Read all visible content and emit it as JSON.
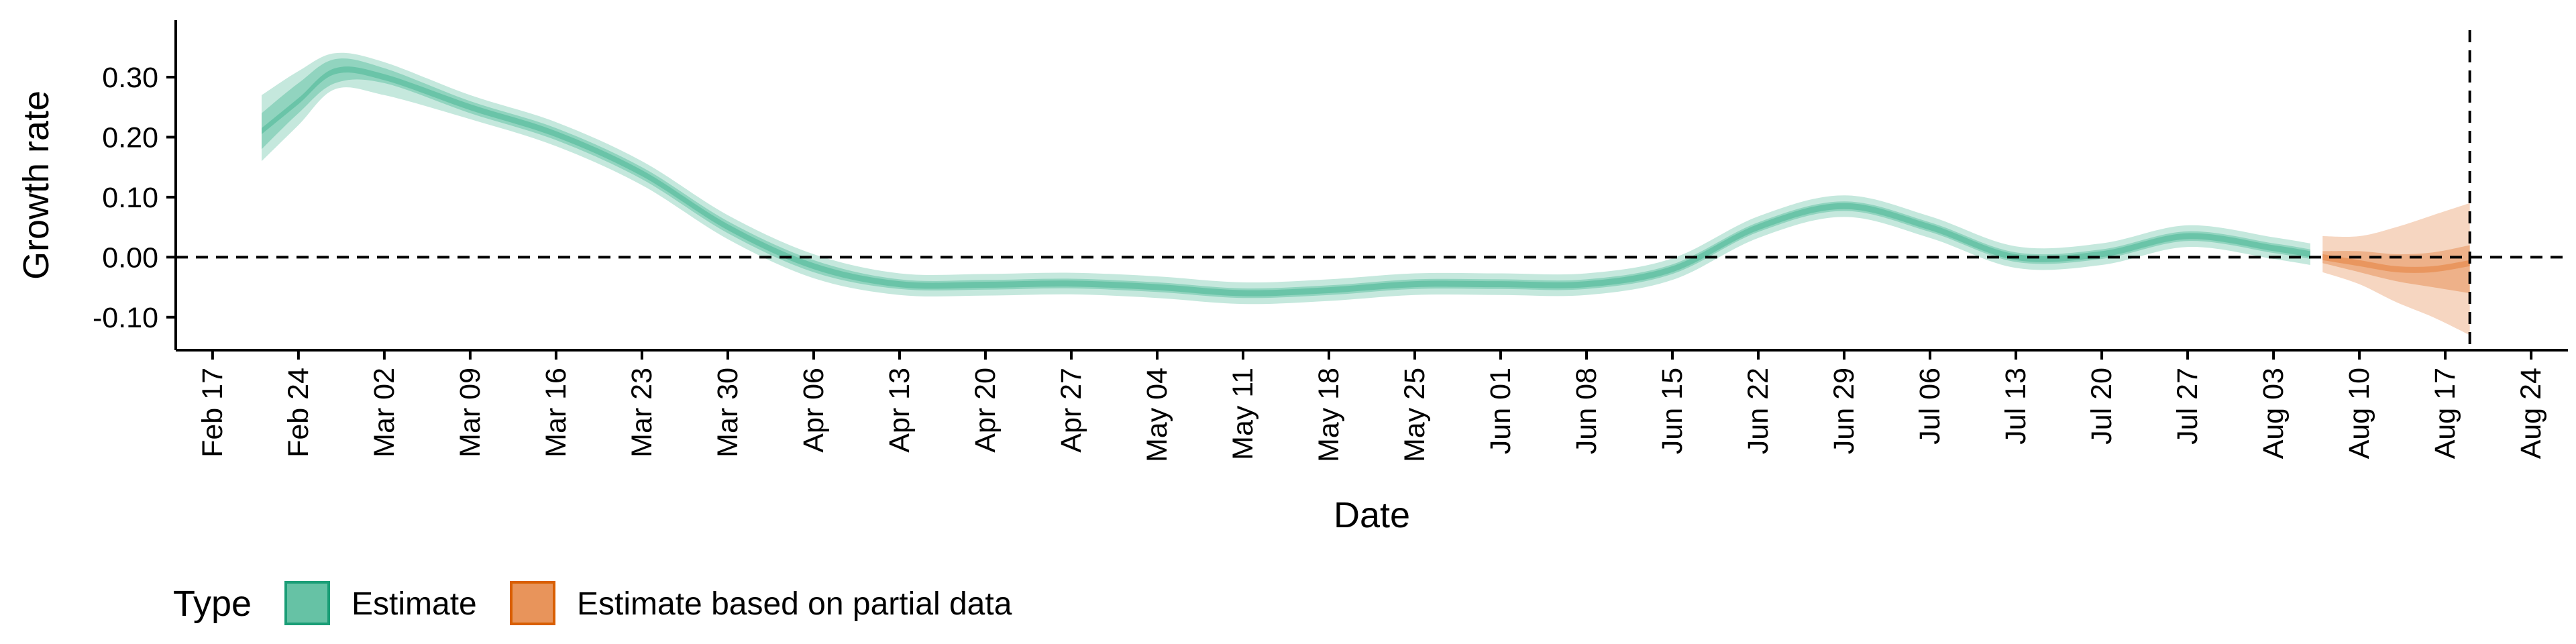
{
  "chart_data": {
    "type": "area",
    "xlabel": "Date",
    "ylabel": "Growth rate",
    "x_ticks": [
      "Feb 17",
      "Feb 24",
      "Mar 02",
      "Mar 09",
      "Mar 16",
      "Mar 23",
      "Mar 30",
      "Apr 06",
      "Apr 13",
      "Apr 20",
      "Apr 27",
      "May 04",
      "May 11",
      "May 18",
      "May 25",
      "Jun 01",
      "Jun 08",
      "Jun 15",
      "Jun 22",
      "Jun 29",
      "Jul 06",
      "Jul 13",
      "Jul 20",
      "Jul 27",
      "Aug 03",
      "Aug 10",
      "Aug 17",
      "Aug 24"
    ],
    "y_ticks": [
      -0.1,
      0.0,
      0.1,
      0.2,
      0.3
    ],
    "y_tick_labels": [
      "-0.10",
      "0.00",
      "0.10",
      "0.20",
      "0.30"
    ],
    "ylim": [
      -0.155,
      0.395
    ],
    "xlim": [
      "2020-02-14",
      "2020-08-27"
    ],
    "hline": 0.0,
    "vline": "2020-08-19",
    "grid": false,
    "legend": {
      "title": "Type",
      "position": "bottom-left",
      "entries": [
        {
          "label": "Estimate",
          "color": "#66c2a5",
          "edge": "#1b9e77"
        },
        {
          "label": "Estimate based on partial data",
          "color": "#e8945b",
          "edge": "#d95f02"
        }
      ]
    },
    "series": [
      {
        "name": "Estimate",
        "color": "#66c2a5",
        "points": [
          {
            "x": "2020-02-21",
            "median": 0.21,
            "lo50": 0.18,
            "hi50": 0.24,
            "lo90": 0.16,
            "hi90": 0.27
          },
          {
            "x": "2020-02-24",
            "median": 0.26,
            "lo50": 0.24,
            "hi50": 0.29,
            "lo90": 0.22,
            "hi90": 0.31
          },
          {
            "x": "2020-02-27",
            "median": 0.31,
            "lo50": 0.29,
            "hi50": 0.33,
            "lo90": 0.28,
            "hi90": 0.34
          },
          {
            "x": "2020-03-02",
            "median": 0.3,
            "lo50": 0.29,
            "hi50": 0.315,
            "lo90": 0.27,
            "hi90": 0.325
          },
          {
            "x": "2020-03-09",
            "median": 0.25,
            "lo50": 0.24,
            "hi50": 0.26,
            "lo90": 0.23,
            "hi90": 0.27
          },
          {
            "x": "2020-03-16",
            "median": 0.205,
            "lo50": 0.195,
            "hi50": 0.215,
            "lo90": 0.185,
            "hi90": 0.225
          },
          {
            "x": "2020-03-23",
            "median": 0.14,
            "lo50": 0.13,
            "hi50": 0.15,
            "lo90": 0.12,
            "hi90": 0.16
          },
          {
            "x": "2020-03-30",
            "median": 0.05,
            "lo50": 0.04,
            "hi50": 0.06,
            "lo90": 0.03,
            "hi90": 0.07
          },
          {
            "x": "2020-04-06",
            "median": -0.015,
            "lo50": -0.025,
            "hi50": -0.005,
            "lo90": -0.035,
            "hi90": 0.005
          },
          {
            "x": "2020-04-13",
            "median": -0.045,
            "lo50": -0.053,
            "hi50": -0.037,
            "lo90": -0.063,
            "hi90": -0.027
          },
          {
            "x": "2020-04-20",
            "median": -0.046,
            "lo50": -0.054,
            "hi50": -0.038,
            "lo90": -0.064,
            "hi90": -0.028
          },
          {
            "x": "2020-04-27",
            "median": -0.044,
            "lo50": -0.052,
            "hi50": -0.036,
            "lo90": -0.062,
            "hi90": -0.026
          },
          {
            "x": "2020-05-04",
            "median": -0.05,
            "lo50": -0.058,
            "hi50": -0.042,
            "lo90": -0.068,
            "hi90": -0.032
          },
          {
            "x": "2020-05-11",
            "median": -0.06,
            "lo50": -0.068,
            "hi50": -0.052,
            "lo90": -0.078,
            "hi90": -0.042
          },
          {
            "x": "2020-05-18",
            "median": -0.055,
            "lo50": -0.063,
            "hi50": -0.047,
            "lo90": -0.073,
            "hi90": -0.037
          },
          {
            "x": "2020-05-25",
            "median": -0.045,
            "lo50": -0.053,
            "hi50": -0.037,
            "lo90": -0.063,
            "hi90": -0.027
          },
          {
            "x": "2020-06-01",
            "median": -0.045,
            "lo50": -0.053,
            "hi50": -0.037,
            "lo90": -0.063,
            "hi90": -0.027
          },
          {
            "x": "2020-06-08",
            "median": -0.045,
            "lo50": -0.053,
            "hi50": -0.037,
            "lo90": -0.063,
            "hi90": -0.027
          },
          {
            "x": "2020-06-15",
            "median": -0.02,
            "lo50": -0.028,
            "hi50": -0.012,
            "lo90": -0.038,
            "hi90": -0.002
          },
          {
            "x": "2020-06-22",
            "median": 0.05,
            "lo50": 0.042,
            "hi50": 0.058,
            "lo90": 0.032,
            "hi90": 0.068
          },
          {
            "x": "2020-06-29",
            "median": 0.085,
            "lo50": 0.077,
            "hi50": 0.093,
            "lo90": 0.067,
            "hi90": 0.103
          },
          {
            "x": "2020-07-06",
            "median": 0.05,
            "lo50": 0.042,
            "hi50": 0.058,
            "lo90": 0.032,
            "hi90": 0.068
          },
          {
            "x": "2020-07-13",
            "median": 0.0,
            "lo50": -0.008,
            "hi50": 0.008,
            "lo90": -0.018,
            "hi90": 0.018
          },
          {
            "x": "2020-07-20",
            "median": 0.005,
            "lo50": -0.003,
            "hi50": 0.013,
            "lo90": -0.013,
            "hi90": 0.023
          },
          {
            "x": "2020-07-27",
            "median": 0.035,
            "lo50": 0.027,
            "hi50": 0.043,
            "lo90": 0.017,
            "hi90": 0.053
          },
          {
            "x": "2020-08-03",
            "median": 0.015,
            "lo50": 0.007,
            "hi50": 0.023,
            "lo90": -0.003,
            "hi90": 0.033
          },
          {
            "x": "2020-08-06",
            "median": 0.005,
            "lo50": -0.003,
            "hi50": 0.013,
            "lo90": -0.013,
            "hi90": 0.023
          }
        ]
      },
      {
        "name": "Estimate based on partial data",
        "color": "#e8945b",
        "points": [
          {
            "x": "2020-08-07",
            "median": 0.0,
            "lo50": -0.01,
            "hi50": 0.01,
            "lo90": -0.025,
            "hi90": 0.035
          },
          {
            "x": "2020-08-10",
            "median": -0.01,
            "lo50": -0.025,
            "hi50": 0.01,
            "lo90": -0.045,
            "hi90": 0.035
          },
          {
            "x": "2020-08-13",
            "median": -0.02,
            "lo50": -0.04,
            "hi50": 0.005,
            "lo90": -0.075,
            "hi90": 0.05
          },
          {
            "x": "2020-08-16",
            "median": -0.02,
            "lo50": -0.05,
            "hi50": 0.008,
            "lo90": -0.1,
            "hi90": 0.07
          },
          {
            "x": "2020-08-19",
            "median": -0.01,
            "lo50": -0.06,
            "hi50": 0.02,
            "lo90": -0.13,
            "hi90": 0.09
          }
        ]
      }
    ]
  }
}
